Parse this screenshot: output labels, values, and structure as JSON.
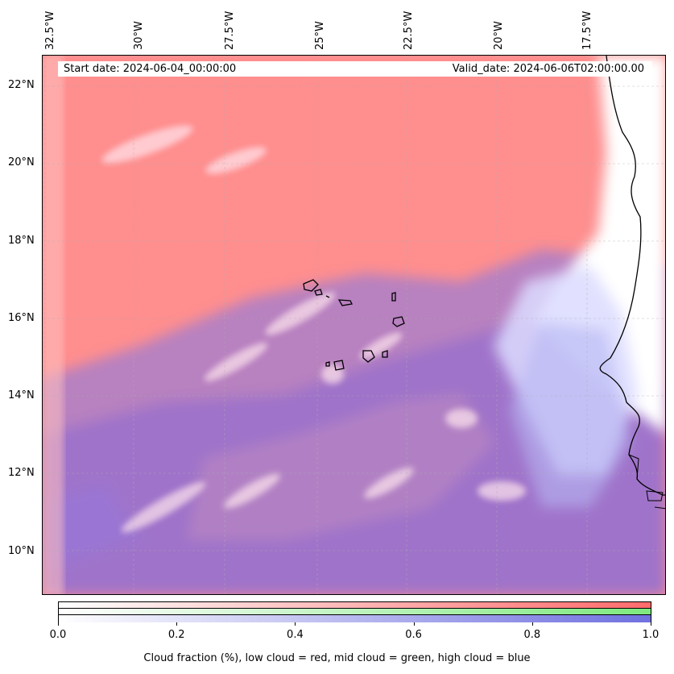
{
  "map": {
    "lon_labels": [
      "32.5°W",
      "30°W",
      "27.5°W",
      "25°W",
      "22.5°W",
      "20°W",
      "17.5°W"
    ],
    "lat_labels": [
      "22°N",
      "20°N",
      "18°N",
      "16°N",
      "14°N",
      "12°N",
      "10°N"
    ],
    "start_date": "Start date: 2024-06-04_00:00:00",
    "valid_date": "Valid_date: 2024-06-06T02:00:00.00"
  },
  "colorbar": {
    "ticks": [
      "0.0",
      "0.2",
      "0.4",
      "0.6",
      "0.8",
      "1.0"
    ],
    "label": "Cloud fraction (%), low cloud = red, mid cloud = green, high cloud = blue",
    "colors": {
      "low": "#ff6b6b",
      "mid": "#7ee87e",
      "high": "#7070e0"
    }
  }
}
